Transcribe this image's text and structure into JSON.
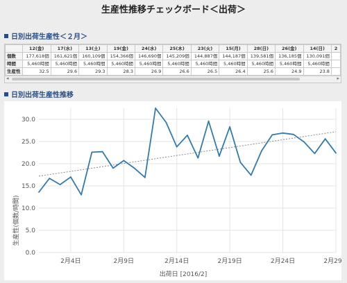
{
  "page": {
    "title": "生産性推移チェックボード＜出荷＞"
  },
  "table_section": {
    "title": "日別出荷生産性＜２月＞",
    "columns": [
      "",
      "12(金)",
      "17(水)",
      "13(土)",
      "19(金)",
      "24(水)",
      "25(木)",
      "23(火)",
      "15(月)",
      "28(日)",
      "26(金)",
      "14(日)",
      "2"
    ],
    "rows": [
      {
        "label": "個数",
        "values": [
          "177,618個",
          "161,621個",
          "160,109個",
          "154,366個",
          "146,690個",
          "145,209個",
          "144,887個",
          "144,187個",
          "139,581個",
          "136,185個",
          "130,091個",
          ""
        ]
      },
      {
        "label": "時間",
        "values": [
          "5,460時間",
          "5,460時間",
          "5,460時間",
          "5,460時間",
          "5,460時間",
          "5,460時間",
          "5,460時間",
          "5,460時間",
          "5,460時間",
          "5,460時間",
          "5,460時間",
          ""
        ]
      },
      {
        "label": "生産性",
        "values": [
          "32.5",
          "29.6",
          "29.3",
          "28.3",
          "26.9",
          "26.6",
          "26.5",
          "26.4",
          "25.6",
          "24.9",
          "23.8",
          ""
        ]
      }
    ]
  },
  "chart_section": {
    "title": "日別出荷生産性推移"
  },
  "colors": {
    "line": "#2f7bb0",
    "trend": "#888888",
    "title": "#2a4f86",
    "grid": "#e4e4e4"
  },
  "chart_data": {
    "type": "line",
    "title": "",
    "xlabel": "出荷日 [2016/2]",
    "ylabel": "生産性(個数/時間)",
    "ylim": [
      0,
      32.5
    ],
    "xlim": [
      1,
      29
    ],
    "y_ticks": [
      0,
      5,
      10,
      15,
      20,
      25,
      30
    ],
    "y_tick_labels": [
      "0.0",
      "5.0",
      "10.0",
      "15.0",
      "20.0",
      "25.0",
      "30.0"
    ],
    "x_ticks": [
      4,
      9,
      14,
      19,
      24,
      29
    ],
    "x_tick_labels": [
      "2月4日",
      "2月9日",
      "2月14日",
      "2月19日",
      "2月24日",
      "2月29日"
    ],
    "grid": true,
    "series": [
      {
        "x": [
          1,
          2,
          3,
          4,
          5,
          6,
          7,
          8,
          9,
          10,
          11,
          12,
          13,
          14,
          15,
          16,
          17,
          18,
          19,
          20,
          21,
          22,
          23,
          24,
          25,
          26,
          27,
          28,
          29
        ],
        "values": [
          13.6,
          16.7,
          15.3,
          17.0,
          13.0,
          22.6,
          22.7,
          19.0,
          20.7,
          19.0,
          16.9,
          32.5,
          29.3,
          23.8,
          26.4,
          21.3,
          29.6,
          21.7,
          28.3,
          20.3,
          17.4,
          22.9,
          26.5,
          26.9,
          26.6,
          24.9,
          22.3,
          25.6,
          22.4
        ]
      }
    ],
    "trendline": {
      "start": 17.2,
      "end": 27.2
    }
  }
}
